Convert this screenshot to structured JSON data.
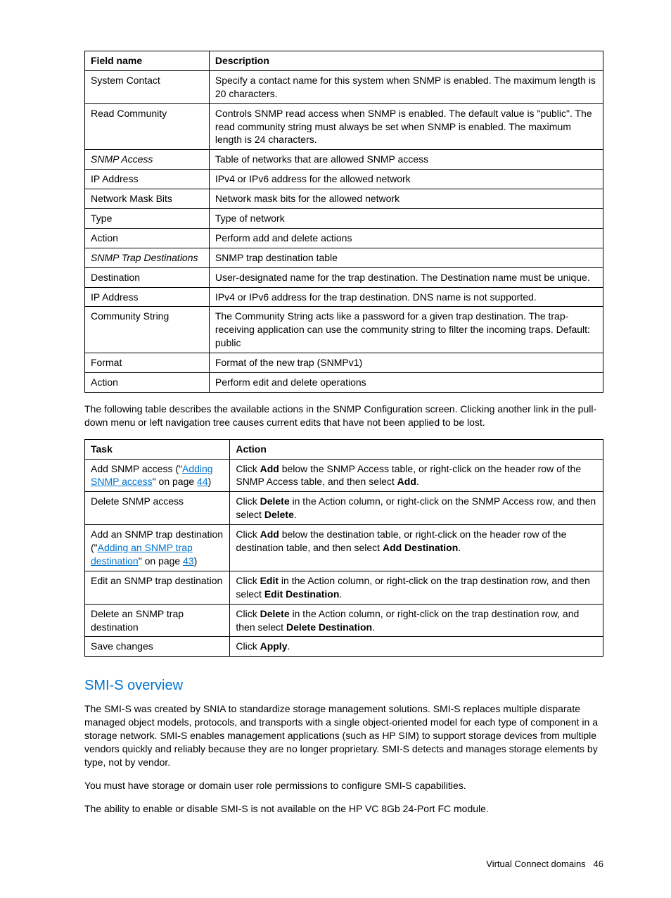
{
  "table1": {
    "headers": [
      "Field name",
      "Description"
    ],
    "rows": [
      {
        "field": "System Contact",
        "italic": false,
        "desc": "Specify a contact name for this system when SNMP is enabled. The maximum length is 20 characters."
      },
      {
        "field": "Read Community",
        "italic": false,
        "desc": "Controls SNMP read access when SNMP is enabled. The default value is \"public\". The read community string must always be set when SNMP is enabled. The maximum length is 24 characters."
      },
      {
        "field": "SNMP Access",
        "italic": true,
        "desc": "Table of networks that are allowed SNMP access"
      },
      {
        "field": "IP Address",
        "italic": false,
        "desc": "IPv4 or IPv6 address for the allowed network"
      },
      {
        "field": "Network Mask Bits",
        "italic": false,
        "desc": "Network mask bits for the allowed network"
      },
      {
        "field": "Type",
        "italic": false,
        "desc": "Type of network"
      },
      {
        "field": "Action",
        "italic": false,
        "desc": "Perform add and delete actions"
      },
      {
        "field": "SNMP Trap Destinations",
        "italic": true,
        "desc": "SNMP trap destination table"
      },
      {
        "field": "Destination",
        "italic": false,
        "desc": "User-designated name for the trap destination. The Destination name must be unique."
      },
      {
        "field": "IP Address",
        "italic": false,
        "desc": "IPv4 or IPv6 address for the trap destination. DNS name is not supported."
      },
      {
        "field": "Community String",
        "italic": false,
        "desc": "The Community String acts like a password for a given trap destination. The trap-receiving application can use the community string to filter the incoming traps. Default: public"
      },
      {
        "field": "Format",
        "italic": false,
        "desc": "Format of the new trap (SNMPv1)"
      },
      {
        "field": "Action",
        "italic": false,
        "desc": "Perform edit and delete operations"
      }
    ]
  },
  "intro2": "The following table describes the available actions in the SNMP Configuration screen. Clicking another link in the pull-down menu or left navigation tree causes current edits that have not been applied to be lost.",
  "table2": {
    "headers": [
      "Task",
      "Action"
    ],
    "rows": [
      {
        "task_parts": [
          {
            "t": "Add SNMP access (\"",
            "link": false
          },
          {
            "t": "Adding SNMP access",
            "link": true
          },
          {
            "t": "\" on page ",
            "link": false
          },
          {
            "t": "44",
            "link": true
          },
          {
            "t": ")",
            "link": false
          }
        ],
        "action_parts": [
          {
            "t": "Click ",
            "b": false
          },
          {
            "t": "Add",
            "b": true
          },
          {
            "t": " below the SNMP Access table, or right-click on the header row of the SNMP Access table, and then select ",
            "b": false
          },
          {
            "t": "Add",
            "b": true
          },
          {
            "t": ".",
            "b": false
          }
        ]
      },
      {
        "task_parts": [
          {
            "t": "Delete SNMP access",
            "link": false
          }
        ],
        "action_parts": [
          {
            "t": "Click ",
            "b": false
          },
          {
            "t": "Delete",
            "b": true
          },
          {
            "t": " in the Action column, or right-click on the SNMP Access row, and then select ",
            "b": false
          },
          {
            "t": "Delete",
            "b": true
          },
          {
            "t": ".",
            "b": false
          }
        ]
      },
      {
        "task_parts": [
          {
            "t": "Add an SNMP trap destination (\"",
            "link": false
          },
          {
            "t": "Adding an SNMP trap destination",
            "link": true
          },
          {
            "t": "\" on page ",
            "link": false
          },
          {
            "t": "43",
            "link": true
          },
          {
            "t": ")",
            "link": false
          }
        ],
        "action_parts": [
          {
            "t": "Click ",
            "b": false
          },
          {
            "t": "Add",
            "b": true
          },
          {
            "t": " below the destination table, or right-click on the header row of the destination table, and then select ",
            "b": false
          },
          {
            "t": "Add Destination",
            "b": true
          },
          {
            "t": ".",
            "b": false
          }
        ]
      },
      {
        "task_parts": [
          {
            "t": "Edit an SNMP trap destination",
            "link": false
          }
        ],
        "action_parts": [
          {
            "t": "Click ",
            "b": false
          },
          {
            "t": "Edit",
            "b": true
          },
          {
            "t": " in the Action column, or right-click on the trap destination row, and then select ",
            "b": false
          },
          {
            "t": "Edit Destination",
            "b": true
          },
          {
            "t": ".",
            "b": false
          }
        ]
      },
      {
        "task_parts": [
          {
            "t": "Delete an SNMP trap destination",
            "link": false
          }
        ],
        "action_parts": [
          {
            "t": "Click ",
            "b": false
          },
          {
            "t": "Delete",
            "b": true
          },
          {
            "t": " in the Action column, or right-click on the trap destination row, and then select ",
            "b": false
          },
          {
            "t": "Delete Destination",
            "b": true
          },
          {
            "t": ".",
            "b": false
          }
        ]
      },
      {
        "task_parts": [
          {
            "t": "Save changes",
            "link": false
          }
        ],
        "action_parts": [
          {
            "t": "Click ",
            "b": false
          },
          {
            "t": "Apply",
            "b": true
          },
          {
            "t": ".",
            "b": false
          }
        ]
      }
    ]
  },
  "section_title": "SMI-S overview",
  "para1": "The SMI-S was created by SNIA to standardize storage management solutions. SMI-S replaces multiple disparate managed object models, protocols, and transports with a single object-oriented model for each type of component in a storage network. SMI-S enables management applications (such as HP SIM) to support storage devices from multiple vendors quickly and reliably because they are no longer proprietary. SMI-S detects and manages storage elements by type, not by vendor.",
  "para2": "You must have storage or domain user role permissions to configure SMI-S capabilities.",
  "para3": "The ability to enable or disable SMI-S is not available on the HP VC 8Gb 24-Port FC module.",
  "footer_text": "Virtual Connect domains",
  "footer_page": "46"
}
